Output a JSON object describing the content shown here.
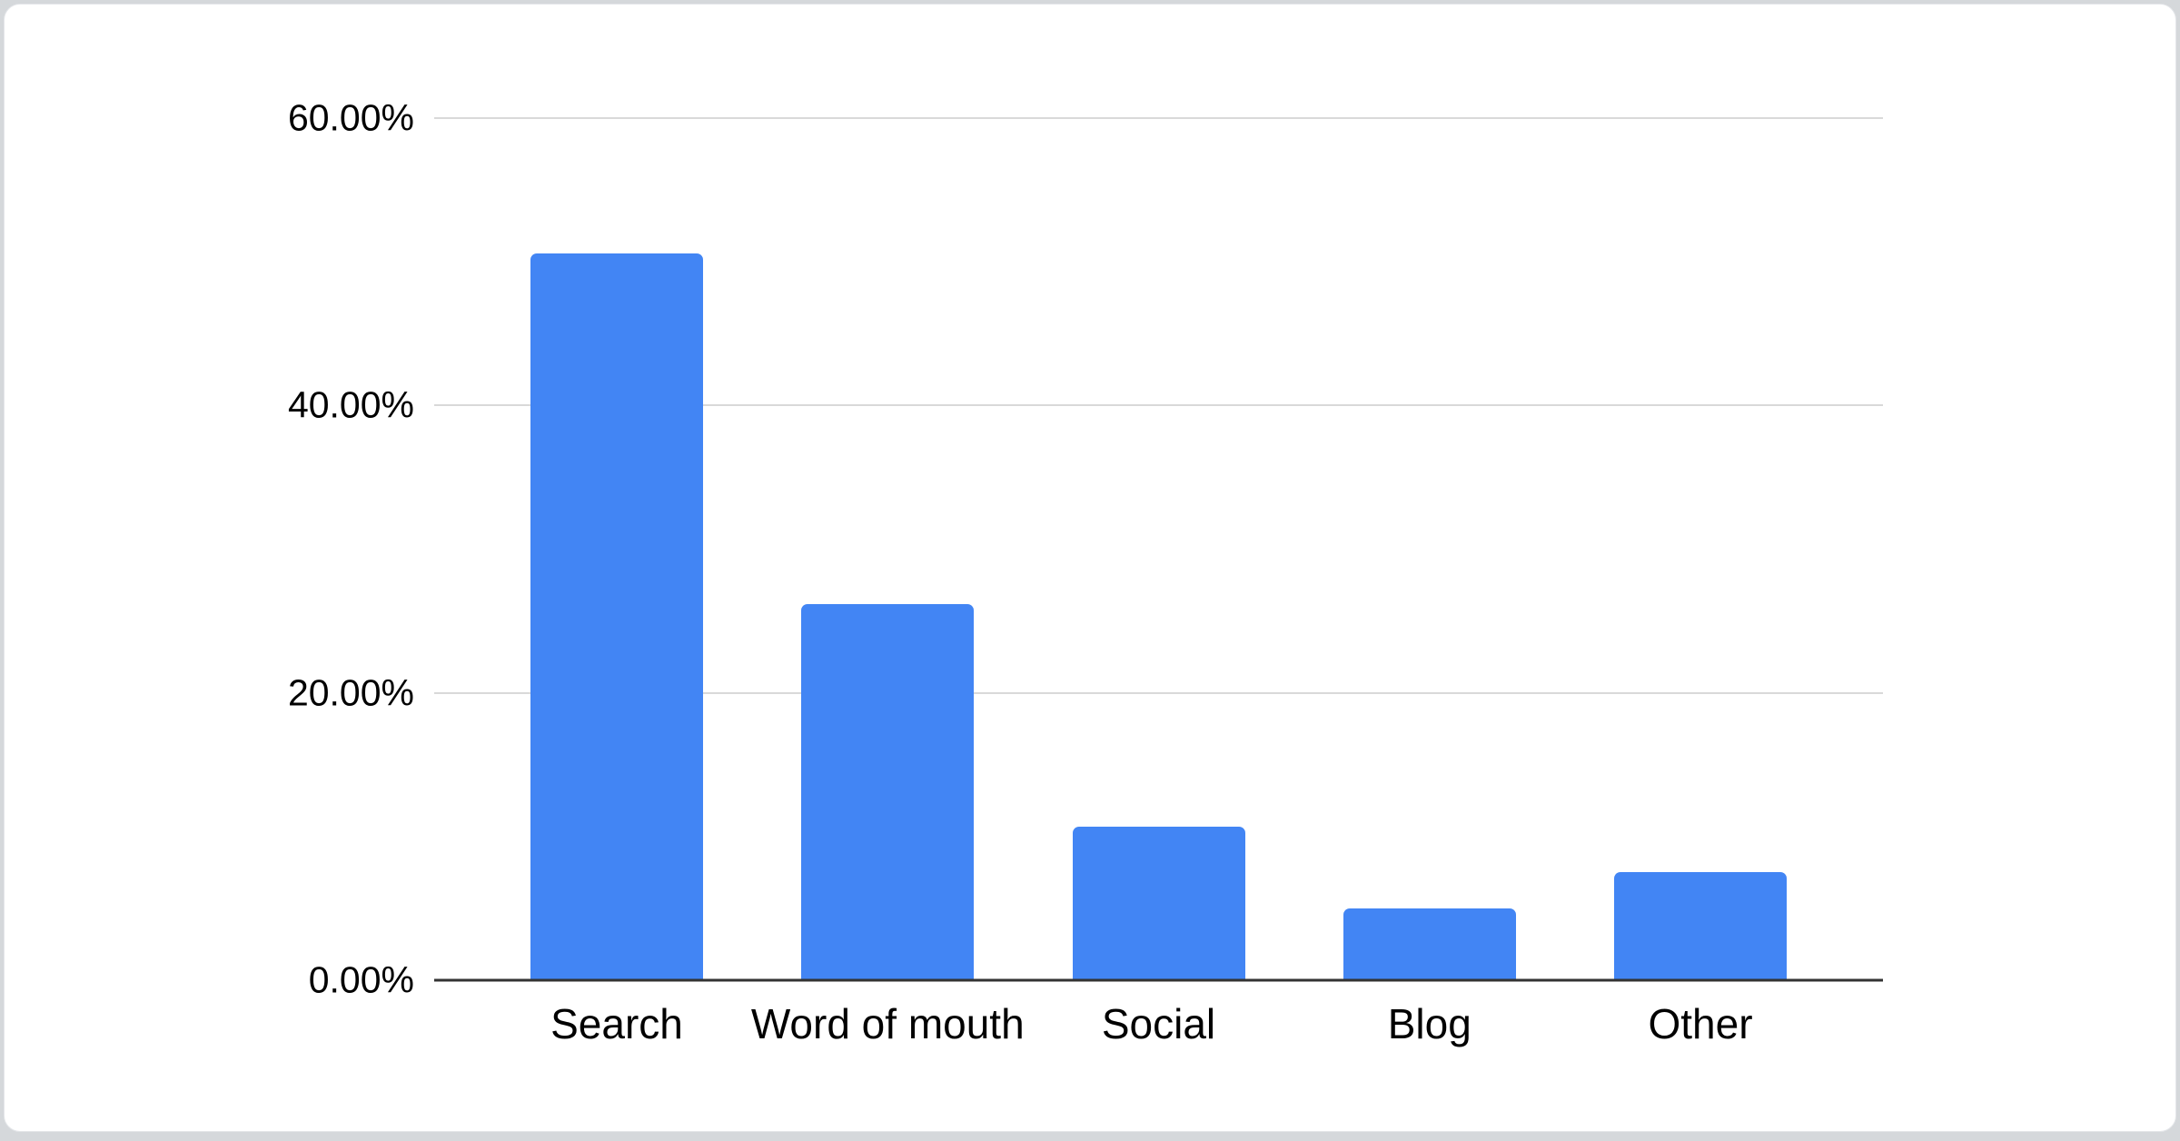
{
  "window": {
    "background_color": "#d5d8db",
    "card_color": "#ffffff"
  },
  "chart_data": {
    "type": "bar",
    "title": "",
    "xlabel": "",
    "ylabel": "",
    "categories": [
      "Search",
      "Word of mouth",
      "Social",
      "Blog",
      "Other"
    ],
    "values": [
      50.6,
      26.2,
      10.7,
      5.0,
      7.5
    ],
    "values_unit": "percent",
    "ylim": [
      0,
      60
    ],
    "yticks": [
      {
        "value": 0,
        "label": "0.00%"
      },
      {
        "value": 20,
        "label": "20.00%"
      },
      {
        "value": 40,
        "label": "40.00%"
      },
      {
        "value": 60,
        "label": "60.00%"
      }
    ],
    "grid": true,
    "legend_position": "none",
    "bar_color": "#4285f4",
    "gridline_color": "#d9d9d9",
    "axis_line_color": "#333333",
    "tick_label_color": "#000000"
  }
}
